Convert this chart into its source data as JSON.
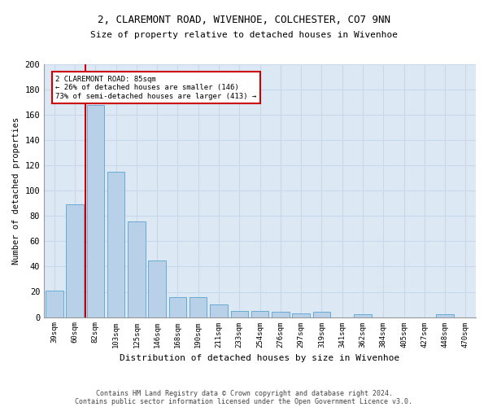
{
  "title1": "2, CLAREMONT ROAD, WIVENHOE, COLCHESTER, CO7 9NN",
  "title2": "Size of property relative to detached houses in Wivenhoe",
  "xlabel": "Distribution of detached houses by size in Wivenhoe",
  "ylabel": "Number of detached properties",
  "footer1": "Contains HM Land Registry data © Crown copyright and database right 2024.",
  "footer2": "Contains public sector information licensed under the Open Government Licence v3.0.",
  "bar_color": "#b8d0e8",
  "bar_edge_color": "#6aaad4",
  "grid_color": "#c8d8ea",
  "bg_color": "#dce9f5",
  "categories": [
    "39sqm",
    "60sqm",
    "82sqm",
    "103sqm",
    "125sqm",
    "146sqm",
    "168sqm",
    "190sqm",
    "211sqm",
    "233sqm",
    "254sqm",
    "276sqm",
    "297sqm",
    "319sqm",
    "341sqm",
    "362sqm",
    "384sqm",
    "405sqm",
    "427sqm",
    "448sqm",
    "470sqm"
  ],
  "values": [
    21,
    89,
    168,
    115,
    76,
    45,
    16,
    16,
    10,
    5,
    5,
    4,
    3,
    4,
    0,
    2,
    0,
    0,
    0,
    2,
    0
  ],
  "annotation_text": "2 CLAREMONT ROAD: 85sqm\n← 26% of detached houses are smaller (146)\n73% of semi-detached houses are larger (413) →",
  "vline_color": "#cc0000",
  "annotation_box_color": "#ffffff",
  "annotation_box_edge": "#cc0000",
  "ylim": [
    0,
    200
  ],
  "yticks": [
    0,
    20,
    40,
    60,
    80,
    100,
    120,
    140,
    160,
    180,
    200
  ]
}
